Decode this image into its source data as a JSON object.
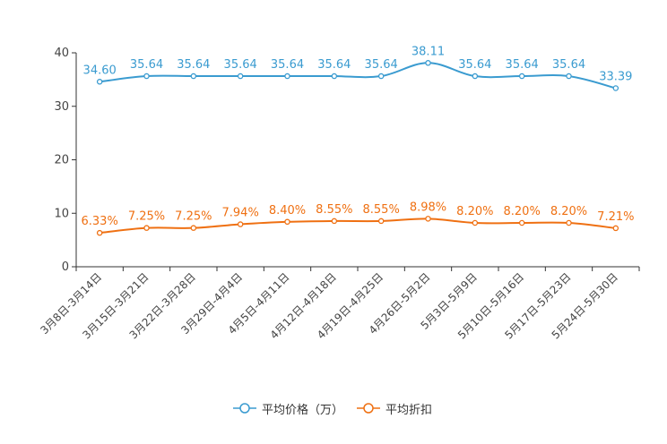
{
  "chart_data": {
    "type": "line",
    "categories": [
      "3月8日-3月14日",
      "3月15日-3月21日",
      "3月22日-3月28日",
      "3月29日-4月4日",
      "4月5日-4月11日",
      "4月12日-4月18日",
      "4月19日-4月25日",
      "4月26日-5月2日",
      "5月3日-5月9日",
      "5月10日-5月16日",
      "5月17日-5月23日",
      "5月24日-5月30日"
    ],
    "series": [
      {
        "name": "平均价格（万）",
        "color": "#3a9bd0",
        "values": [
          34.6,
          35.64,
          35.64,
          35.64,
          35.64,
          35.64,
          35.64,
          38.11,
          35.64,
          35.64,
          35.64,
          33.39
        ],
        "labels": [
          "34.60",
          "35.64",
          "35.64",
          "35.64",
          "35.64",
          "35.64",
          "35.64",
          "38.11",
          "35.64",
          "35.64",
          "35.64",
          "33.39"
        ]
      },
      {
        "name": "平均折扣",
        "color": "#ef7012",
        "values": [
          6.33,
          7.25,
          7.25,
          7.94,
          8.4,
          8.55,
          8.55,
          8.98,
          8.2,
          8.2,
          8.2,
          7.21
        ],
        "labels": [
          "6.33%",
          "7.25%",
          "7.25%",
          "7.94%",
          "8.40%",
          "8.55%",
          "8.55%",
          "8.98%",
          "8.20%",
          "8.20%",
          "8.20%",
          "7.21%"
        ]
      }
    ],
    "yticks": [
      "0",
      "10",
      "20",
      "30",
      "40"
    ],
    "ylim": [
      0,
      40
    ],
    "title": "",
    "xlabel": "",
    "ylabel": "",
    "legend_position": "bottom-center"
  }
}
